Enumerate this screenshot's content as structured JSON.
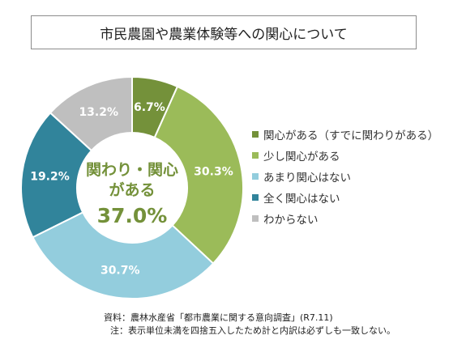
{
  "header": {
    "title": "市民農園や農業体験等への関心について"
  },
  "chart_data": {
    "type": "pie",
    "donut": true,
    "start_angle_deg": 0,
    "direction": "clockwise",
    "categories": [
      "関心がある（すでに関わりがある）",
      "少し関心がある",
      "あまり関心はない",
      "全く関心はない",
      "わからない"
    ],
    "values": [
      6.7,
      30.3,
      30.7,
      19.2,
      13.2
    ],
    "labels": [
      "6.7%",
      "30.3%",
      "30.7%",
      "19.2%",
      "13.2%"
    ],
    "colors": [
      "#74913a",
      "#9bbb59",
      "#93cddd",
      "#31849b",
      "#bfbfbf"
    ],
    "label_colors": [
      "#ffffff",
      "#ffffff",
      "#ffffff",
      "#ffffff",
      "#ffffff"
    ],
    "center_text": {
      "line1": "関わり・関心",
      "line2": "がある",
      "value": "37.0%"
    },
    "legend_position": "right"
  },
  "notes": {
    "source": "資料：農林水産省「都市農業に関する意向調査」(R7.11)",
    "caveat": "注：表示単位未満を四捨五入したため計と内訳は必ずしも一致しない。"
  }
}
